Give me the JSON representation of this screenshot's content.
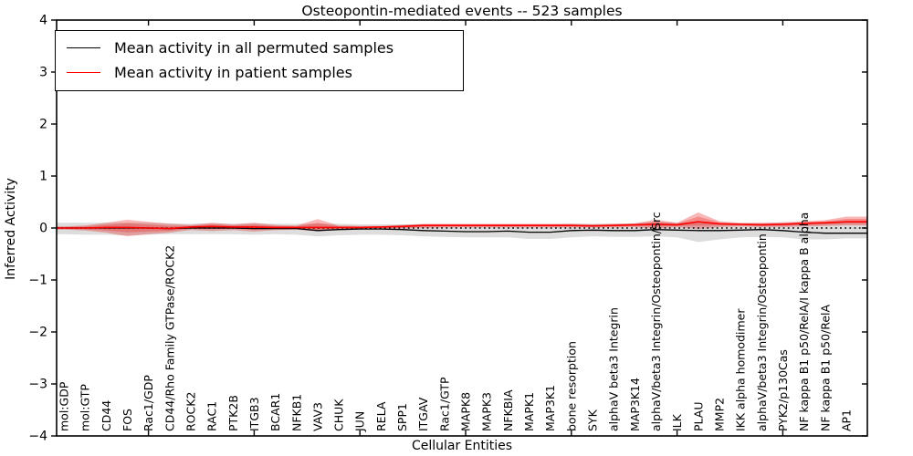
{
  "figure": {
    "title": "Osteopontin-mediated events -- 523 samples",
    "xlabel": "Cellular Entities",
    "ylabel": "Inferred Activity"
  },
  "legend": {
    "entries": [
      {
        "label": "Mean activity in all permuted samples",
        "color": "#000000"
      },
      {
        "label": "Mean activity in patient samples",
        "color": "#ff0000"
      }
    ]
  },
  "chart_data": {
    "type": "line",
    "title": "Osteopontin-mediated events -- 523 samples",
    "xlabel": "Cellular Entities",
    "ylabel": "Inferred Activity",
    "ylim": [
      -4,
      4
    ],
    "yticks": [
      4,
      3,
      2,
      1,
      0,
      -1,
      -2,
      -3,
      -4
    ],
    "ytick_labels": [
      "4",
      "3",
      "2",
      "1",
      "0",
      "−1",
      "−2",
      "−3",
      "−4"
    ],
    "xticks_at_category_index": [
      4,
      9,
      14,
      19,
      24,
      29,
      34
    ],
    "grid": false,
    "legend_position": "upper left",
    "zero_line": {
      "style": "dotted",
      "color": "#000000",
      "y": 0
    },
    "categories": [
      "mol:GDP",
      "mol:GTP",
      "CD44",
      "FOS",
      "Rac1/GDP",
      "CD44/Rho Family GTPase/ROCK2",
      "ROCK2",
      "RAC1",
      "PTK2B",
      "ITGB3",
      "BCAR1",
      "NFKB1",
      "VAV3",
      "CHUK",
      "JUN",
      "RELA",
      "SPP1",
      "ITGAV",
      "Rac1/GTP",
      "MAPK8",
      "MAPK3",
      "NFKBIA",
      "MAPK1",
      "MAP3K1",
      "bone resorption",
      "SYK",
      "alphaV beta3 Integrin",
      "MAP3K14",
      "alphaV/beta3 Integrin/Osteopontin/Src",
      "ILK",
      "PLAU",
      "MMP2",
      "IKK alpha homodimer",
      "alphaV/beta3 Integrin/Osteopontin",
      "PYK2/p130Cas",
      "NF kappa B1 p50/RelA/I kappa B alpha",
      "NF kappa B1 p50/RelA",
      "AP1"
    ],
    "series": [
      {
        "name": "Mean activity in all permuted samples",
        "color": "#000000",
        "values": [
          0.0,
          0.0,
          0.0,
          0.0,
          0.0,
          -0.01,
          0.0,
          0.0,
          0.0,
          -0.01,
          -0.01,
          -0.01,
          -0.05,
          -0.03,
          -0.02,
          -0.02,
          -0.03,
          -0.05,
          -0.06,
          -0.07,
          -0.07,
          -0.06,
          -0.08,
          -0.08,
          -0.05,
          -0.04,
          -0.05,
          -0.05,
          -0.03,
          -0.04,
          -0.05,
          -0.05,
          -0.04,
          -0.03,
          -0.05,
          -0.08,
          -0.1,
          -0.1
        ]
      },
      {
        "name": "Mean activity in patient samples",
        "color": "#ff0000",
        "values": [
          0.0,
          0.0,
          0.01,
          0.01,
          0.0,
          -0.01,
          0.02,
          0.03,
          0.02,
          0.02,
          0.01,
          0.01,
          0.01,
          0.01,
          0.01,
          0.02,
          0.03,
          0.05,
          0.05,
          0.05,
          0.05,
          0.05,
          0.05,
          0.05,
          0.05,
          0.04,
          0.05,
          0.06,
          0.07,
          0.06,
          0.12,
          0.08,
          0.07,
          0.06,
          0.07,
          0.09,
          0.1,
          0.12
        ]
      }
    ],
    "bands": [
      {
        "name": "permuted-samples-range",
        "color": "#9e9e9e",
        "opacity": 0.35,
        "upper": [
          0.1,
          0.1,
          0.1,
          0.1,
          0.1,
          0.09,
          0.08,
          0.09,
          0.08,
          0.09,
          0.08,
          0.08,
          0.08,
          0.08,
          0.07,
          0.07,
          0.07,
          0.07,
          0.07,
          0.07,
          0.07,
          0.07,
          0.07,
          0.07,
          0.08,
          0.08,
          0.08,
          0.09,
          0.12,
          0.1,
          0.1,
          0.09,
          0.09,
          0.09,
          0.1,
          0.1,
          0.1,
          0.1
        ],
        "lower": [
          -0.12,
          -0.13,
          -0.13,
          -0.14,
          -0.13,
          -0.12,
          -0.12,
          -0.12,
          -0.12,
          -0.13,
          -0.12,
          -0.13,
          -0.16,
          -0.14,
          -0.13,
          -0.13,
          -0.14,
          -0.16,
          -0.17,
          -0.18,
          -0.18,
          -0.18,
          -0.21,
          -0.21,
          -0.18,
          -0.16,
          -0.17,
          -0.17,
          -0.16,
          -0.18,
          -0.27,
          -0.22,
          -0.18,
          -0.17,
          -0.18,
          -0.22,
          -0.22,
          -0.2
        ]
      },
      {
        "name": "patient-samples-range",
        "color": "#e60000",
        "opacity": 0.28,
        "upper": [
          0.03,
          0.05,
          0.1,
          0.16,
          0.12,
          0.08,
          0.06,
          0.1,
          0.07,
          0.1,
          0.06,
          0.05,
          0.17,
          0.05,
          0.04,
          0.04,
          0.06,
          0.08,
          0.08,
          0.08,
          0.08,
          0.08,
          0.08,
          0.08,
          0.08,
          0.07,
          0.08,
          0.09,
          0.16,
          0.1,
          0.3,
          0.13,
          0.1,
          0.1,
          0.11,
          0.13,
          0.15,
          0.22
        ],
        "lower": [
          -0.03,
          -0.05,
          -0.09,
          -0.16,
          -0.12,
          -0.09,
          -0.04,
          -0.06,
          -0.04,
          -0.07,
          -0.04,
          -0.03,
          -0.06,
          -0.03,
          -0.02,
          -0.01,
          -0.01,
          0.0,
          0.01,
          0.01,
          0.01,
          0.01,
          0.01,
          0.01,
          0.01,
          0.01,
          0.01,
          0.02,
          -0.01,
          0.02,
          -0.02,
          0.02,
          0.03,
          0.02,
          0.02,
          0.03,
          0.04,
          0.05
        ]
      }
    ]
  }
}
